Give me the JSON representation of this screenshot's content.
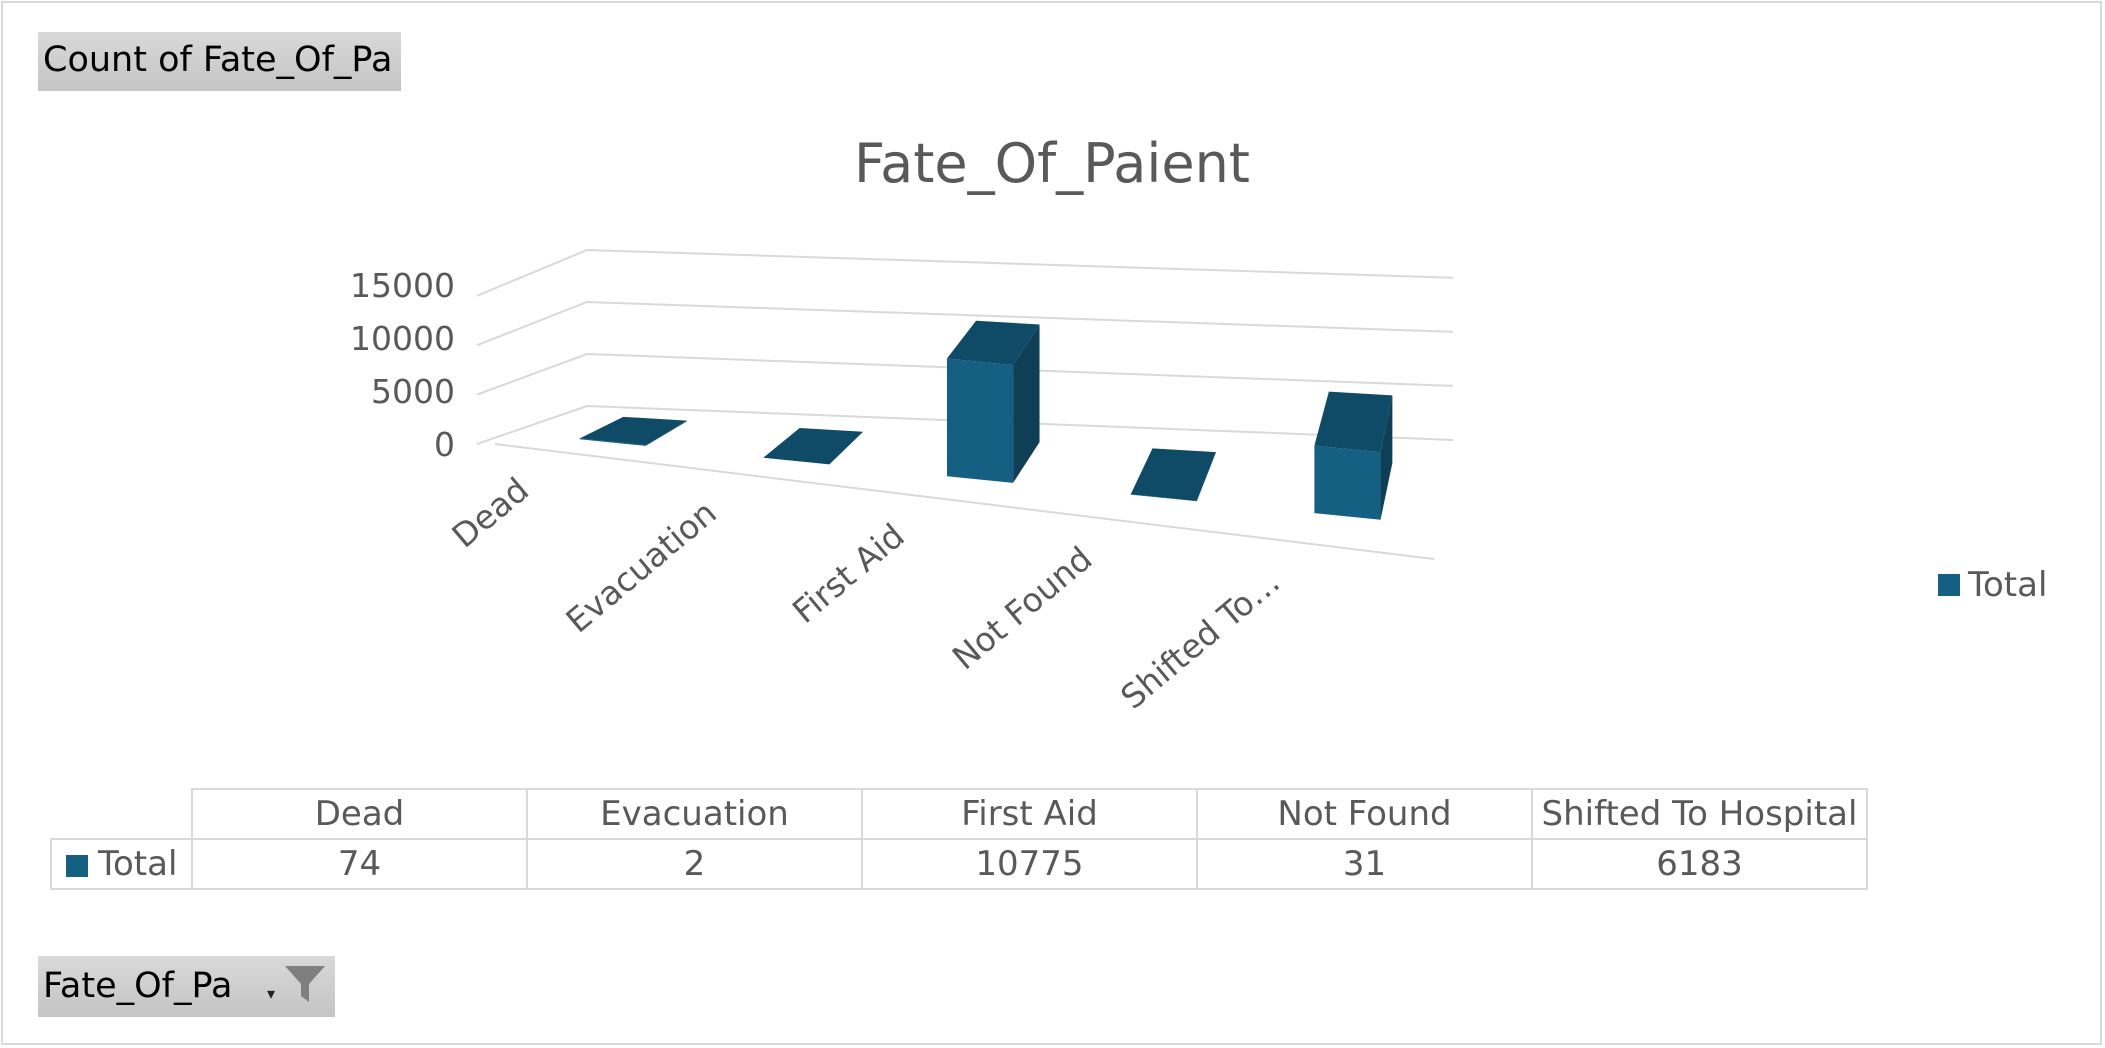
{
  "pivot": {
    "value_field_label": "Count of Fate_Of_Pa",
    "axis_field_label": "Fate_Of_Pa",
    "filter_icon": "funnel-icon",
    "dropdown_icon": "dropdown-arrow-icon"
  },
  "colors": {
    "series": "#156082",
    "grid": "#d9d9d9",
    "text": "#595959"
  },
  "chart_data": {
    "type": "bar",
    "style": "3d-column",
    "title": "Fate_Of_Paient",
    "categories": [
      "Dead",
      "Evacuation",
      "First Aid",
      "Not Found",
      "Shifted To Hospital"
    ],
    "axis_category_labels": [
      "Dead",
      "Evacuation",
      "First Aid",
      "Not Found",
      "Shifted To…"
    ],
    "series": [
      {
        "name": "Total",
        "values": [
          74,
          2,
          10775,
          31,
          6183
        ]
      }
    ],
    "y_ticks": [
      "15000",
      "10000",
      "5000",
      "0"
    ],
    "ylim": [
      0,
      15000
    ],
    "grid": true,
    "legend_position": "right",
    "data_table": true
  },
  "data_table": {
    "headers": [
      "Dead",
      "Evacuation",
      "First Aid",
      "Not Found",
      "Shifted To Hospital"
    ],
    "row_label": "Total",
    "values": [
      "74",
      "2",
      "10775",
      "31",
      "6183"
    ]
  }
}
